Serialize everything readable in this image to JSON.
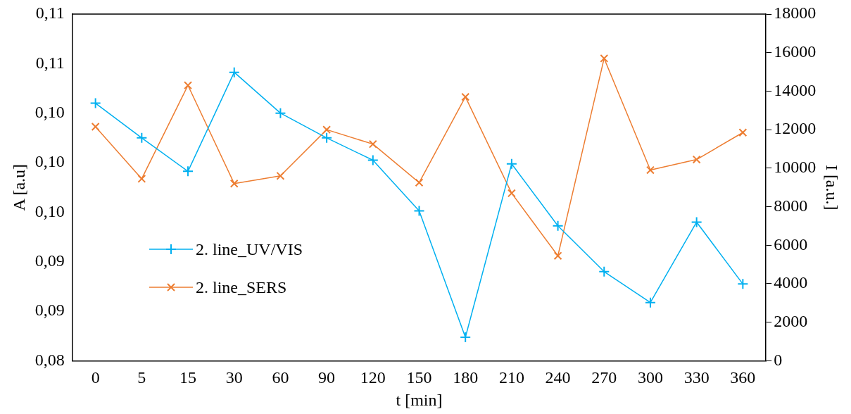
{
  "chart_data": {
    "type": "line",
    "xlabel": "t [min]",
    "ylabel": "A [a.u]",
    "y2label": "I [a.u.]",
    "categories": [
      "0",
      "5",
      "15",
      "30",
      "60",
      "90",
      "120",
      "150",
      "180",
      "210",
      "240",
      "270",
      "300",
      "330",
      "360"
    ],
    "series": [
      {
        "name": "2. line_UV/VIS",
        "color": "#00b0f0",
        "marker": "plus",
        "values": [
          0.1038,
          0.101,
          0.0983,
          0.1063,
          0.103,
          0.101,
          0.0992,
          0.0951,
          0.0849,
          0.0989,
          0.0939,
          0.0902,
          0.0877,
          0.0942,
          0.0892
        ]
      },
      {
        "name": "2. line_SERS",
        "color": "#ed7d31",
        "marker": "cross",
        "axis": "y2",
        "values": [
          12150,
          9450,
          14300,
          9200,
          9600,
          12000,
          11250,
          9250,
          13700,
          8700,
          5450,
          15700,
          9900,
          10450,
          11850
        ]
      }
    ],
    "ylim": [
      0.083,
      0.111
    ],
    "yticks": [
      {
        "value": 0.083,
        "label": "0,08"
      },
      {
        "value": 0.087,
        "label": "0,09"
      },
      {
        "value": 0.091,
        "label": "0,09"
      },
      {
        "value": 0.095,
        "label": "0,10"
      },
      {
        "value": 0.099,
        "label": "0,10"
      },
      {
        "value": 0.103,
        "label": "0,10"
      },
      {
        "value": 0.107,
        "label": "0,11"
      },
      {
        "value": 0.111,
        "label": "0,11"
      }
    ],
    "y2lim": [
      0,
      18000
    ],
    "y2ticks": [
      0,
      2000,
      4000,
      6000,
      8000,
      10000,
      12000,
      14000,
      16000,
      18000
    ],
    "grid": false,
    "legend": "bottom left",
    "line_style": "solid"
  }
}
